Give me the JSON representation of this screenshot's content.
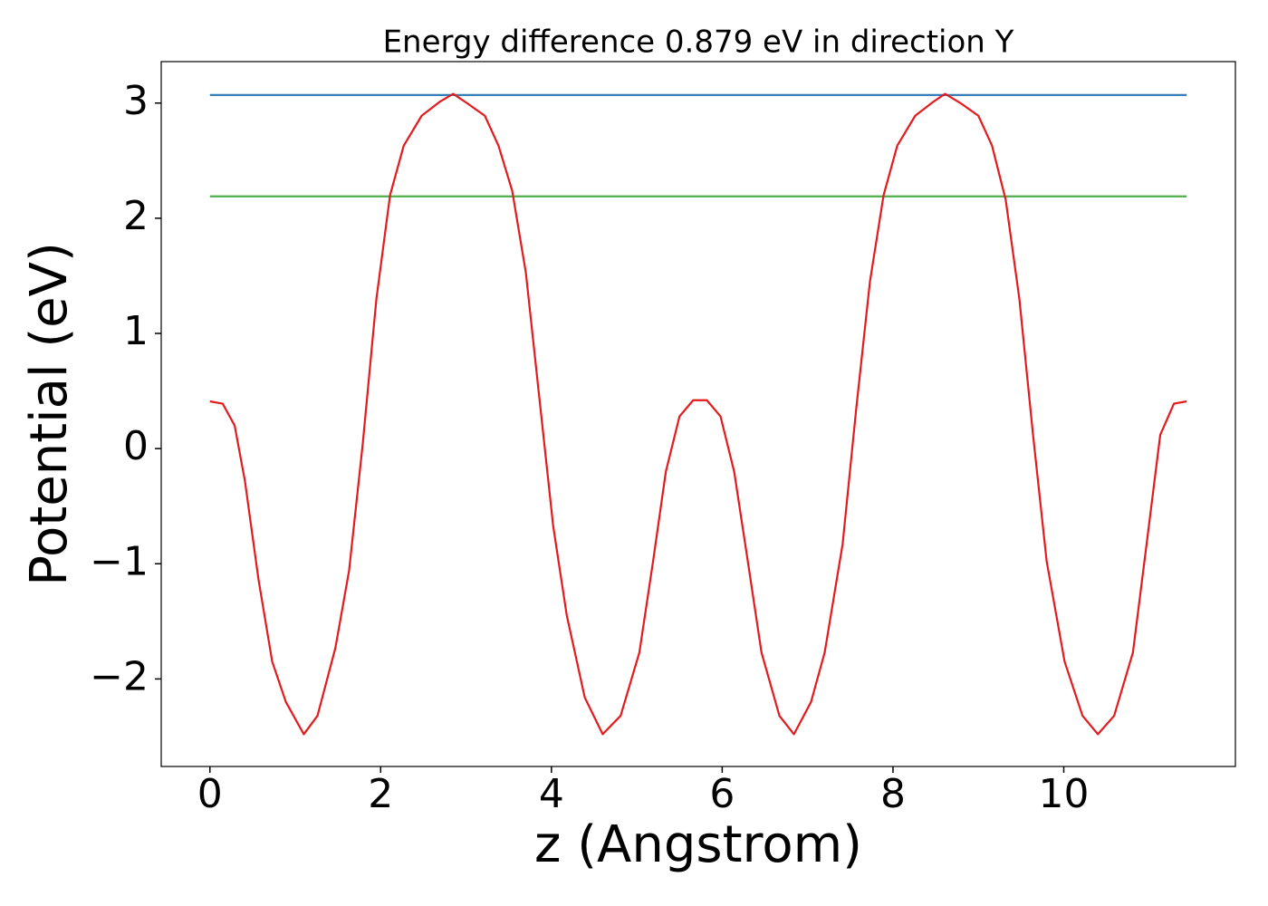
{
  "chart_data": {
    "type": "line",
    "title": "Energy difference 0.879 eV in direction Y",
    "x_label": "z (Angstrom)",
    "y_label": "Potential (eV)",
    "xlim": [
      -0.57,
      12.01
    ],
    "ylim": [
      -2.76,
      3.36
    ],
    "xticks": [
      0,
      2,
      4,
      6,
      8,
      10
    ],
    "yticks": [
      {
        "value": -2,
        "label": "−2"
      },
      {
        "value": -1,
        "label": "−1"
      },
      0,
      1,
      2,
      3
    ],
    "grid": false,
    "series": [
      {
        "color": "#377eb8",
        "x": [
          0,
          11.44
        ],
        "values": [
          3.07,
          3.07
        ]
      },
      {
        "color": "#4daf4a",
        "x": [
          0,
          11.44
        ],
        "values": [
          2.19,
          2.19
        ]
      },
      {
        "color": "#e41a1c",
        "x": [
          0,
          0.15,
          0.29,
          0.41,
          0.57,
          0.73,
          0.89,
          1.1,
          1.26,
          1.47,
          1.63,
          1.79,
          1.95,
          2.11,
          2.27,
          2.48,
          2.69,
          2.85,
          3.01,
          3.22,
          3.38,
          3.54,
          3.7,
          3.86,
          4.02,
          4.18,
          4.39,
          4.6,
          4.81,
          5.03,
          5.19,
          5.34,
          5.5,
          5.66,
          5.82,
          5.98,
          6.14,
          6.3,
          6.46,
          6.67,
          6.84,
          7.04,
          7.2,
          7.41,
          7.57,
          7.73,
          7.89,
          8.05,
          8.26,
          8.47,
          8.61,
          8.79,
          9.0,
          9.16,
          9.32,
          9.48,
          9.64,
          9.8,
          10.01,
          10.22,
          10.4,
          10.59,
          10.81,
          10.97,
          11.13,
          11.29,
          11.44
        ],
        "values": [
          0.41,
          0.39,
          0.2,
          -0.28,
          -1.14,
          -1.85,
          -2.2,
          -2.48,
          -2.32,
          -1.73,
          -1.06,
          0.04,
          1.3,
          2.2,
          2.63,
          2.89,
          3.01,
          3.08,
          3.0,
          2.89,
          2.63,
          2.24,
          1.53,
          0.43,
          -0.67,
          -1.45,
          -2.16,
          -2.48,
          -2.32,
          -1.77,
          -0.98,
          -0.2,
          0.28,
          0.42,
          0.42,
          0.28,
          -0.2,
          -0.98,
          -1.77,
          -2.32,
          -2.48,
          -2.2,
          -1.77,
          -0.83,
          0.35,
          1.45,
          2.2,
          2.63,
          2.89,
          3.01,
          3.08,
          3.0,
          2.89,
          2.63,
          2.16,
          1.3,
          0.12,
          -0.98,
          -1.85,
          -2.32,
          -2.48,
          -2.32,
          -1.77,
          -0.83,
          0.12,
          0.39,
          0.41
        ]
      }
    ]
  }
}
